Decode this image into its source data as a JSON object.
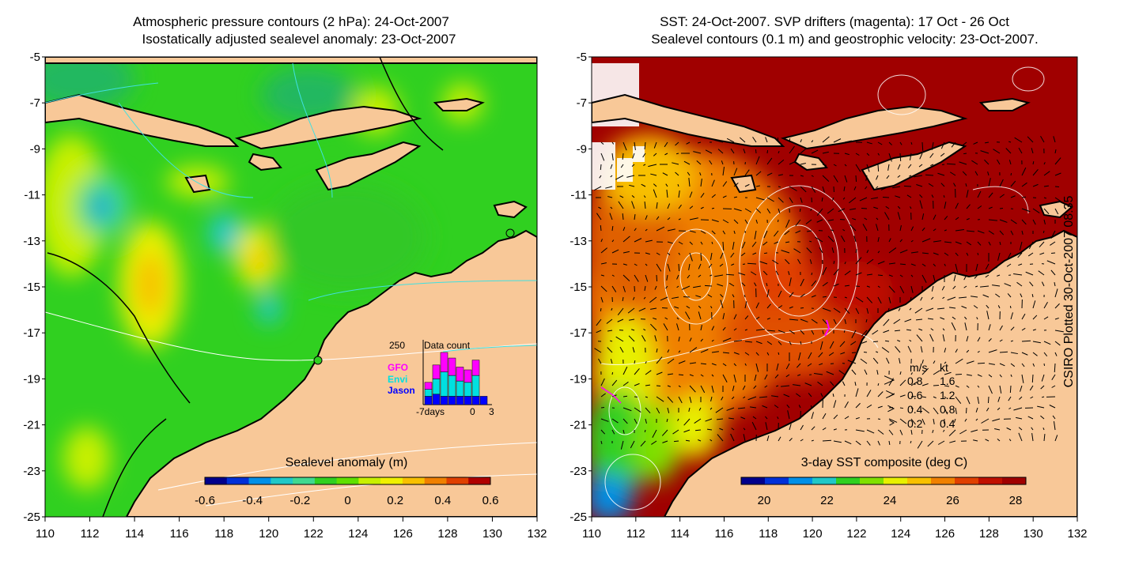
{
  "left_panel": {
    "title_line1": "Atmospheric pressure contours (2 hPa): 24-Oct-2007",
    "title_line2": "Isostatically adjusted sealevel anomaly: 23-Oct-2007",
    "colorbar": {
      "label": "Sealevel anomaly (m)",
      "ticks": [
        "-0.6",
        "-0.4",
        "-0.2",
        "0",
        "0.2",
        "0.4",
        "0.6"
      ],
      "colors": [
        "#00008c",
        "#0030d8",
        "#0090e8",
        "#20c8c8",
        "#40d890",
        "#30d020",
        "#60e000",
        "#c8f000",
        "#f0f000",
        "#f8c000",
        "#f08000",
        "#e04000",
        "#b00000"
      ]
    },
    "inset": {
      "title": "Data count",
      "y_max_label": "250",
      "missions": [
        "GFO",
        "Envi",
        "Jason"
      ],
      "mission_colors": [
        "#ff00ff",
        "#00e0e0",
        "#0000ff"
      ],
      "x_labels": [
        "-7days",
        "0",
        "3"
      ],
      "bars": [
        {
          "jason": 0.12,
          "envi": 0.1,
          "gfo": 0.1
        },
        {
          "jason": 0.15,
          "envi": 0.22,
          "gfo": 0.2
        },
        {
          "jason": 0.12,
          "envi": 0.35,
          "gfo": 0.28
        },
        {
          "jason": 0.12,
          "envi": 0.3,
          "gfo": 0.25
        },
        {
          "jason": 0.12,
          "envi": 0.22,
          "gfo": 0.2
        },
        {
          "jason": 0.12,
          "envi": 0.2,
          "gfo": 0.18
        },
        {
          "jason": 0.12,
          "envi": 0.3,
          "gfo": 0.22
        },
        {
          "jason": 0.12,
          "envi": 0.0,
          "gfo": 0.0
        }
      ]
    }
  },
  "right_panel": {
    "title_line1": "SST: 24-Oct-2007. SVP drifters (magenta): 17 Oct - 26 Oct",
    "title_line2": "Sealevel contours (0.1 m) and geostrophic velocity: 23-Oct-2007.",
    "colorbar": {
      "label": "3-day SST composite (deg C)",
      "ticks": [
        "20",
        "22",
        "24",
        "26",
        "28"
      ],
      "colors": [
        "#00008c",
        "#0030d8",
        "#0090e8",
        "#20c8c8",
        "#30d020",
        "#80e000",
        "#e8f000",
        "#f8c000",
        "#f08000",
        "#e04000",
        "#c01000",
        "#a00000"
      ]
    },
    "velocity_legend": {
      "header_ms": "m/s",
      "header_kt": "kt",
      "rows": [
        {
          "ms": "0.8",
          "kt": "1.6"
        },
        {
          "ms": "0.6",
          "kt": "1.2"
        },
        {
          "ms": "0.4",
          "kt": "0.8"
        },
        {
          "ms": "0.2",
          "kt": "0.4"
        }
      ]
    }
  },
  "axes": {
    "lon_ticks": [
      "110",
      "112",
      "114",
      "116",
      "118",
      "120",
      "122",
      "124",
      "126",
      "128",
      "130",
      "132"
    ],
    "lat_ticks": [
      "-5",
      "-7",
      "-9",
      "-11",
      "-13",
      "-15",
      "-17",
      "-19",
      "-21",
      "-23",
      "-25"
    ]
  },
  "side_note": "CSIRO Plotted 30-Oct-2007 08:35",
  "colors": {
    "land": "#f8c898",
    "coast": "#000000",
    "sla_base": "#30d020",
    "sst_warm": "#a00000",
    "sst_mid": "#f08000"
  }
}
